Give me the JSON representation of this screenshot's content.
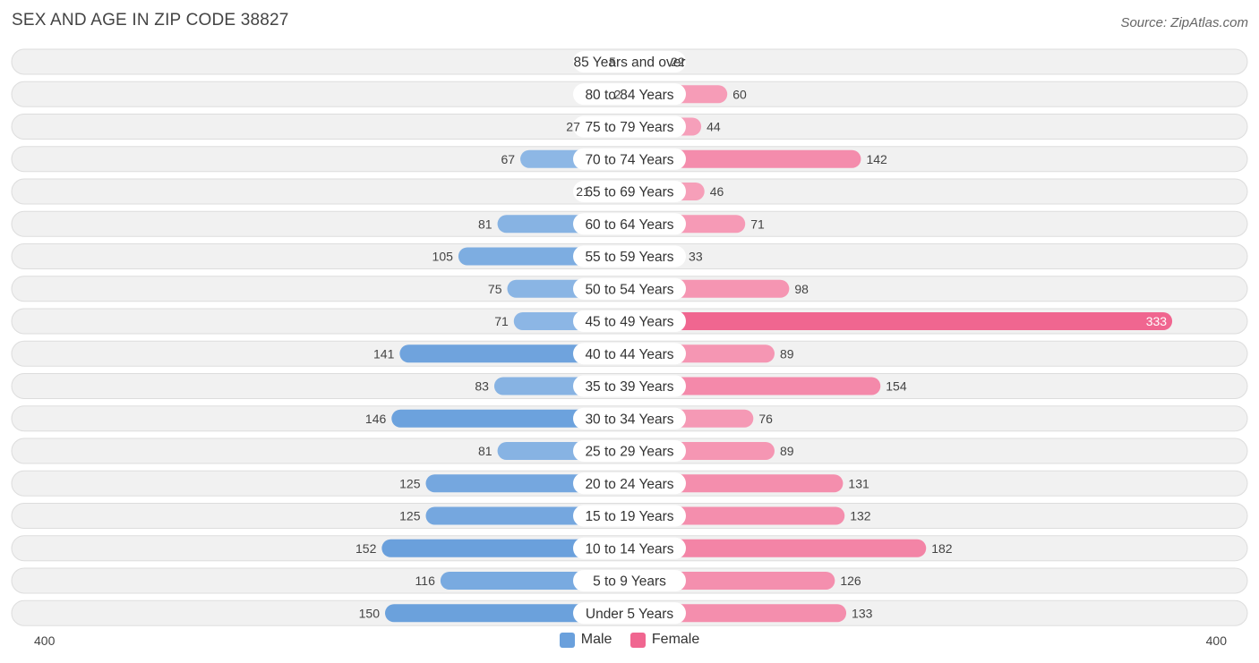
{
  "title": "SEX AND AGE IN ZIP CODE 38827",
  "source": "Source: ZipAtlas.com",
  "colors": {
    "male": "#6aa0dc",
    "male_light": "#a9c9ec",
    "female": "#f06690",
    "female_light": "#f7a8c0",
    "track": "#f1f1f1",
    "track_border": "#dddddd"
  },
  "chart_data": {
    "type": "bar",
    "orientation": "horizontal-diverging",
    "categories": [
      "85 Years and over",
      "80 to 84 Years",
      "75 to 79 Years",
      "70 to 74 Years",
      "65 to 69 Years",
      "60 to 64 Years",
      "55 to 59 Years",
      "50 to 54 Years",
      "45 to 49 Years",
      "40 to 44 Years",
      "35 to 39 Years",
      "30 to 34 Years",
      "25 to 29 Years",
      "20 to 24 Years",
      "15 to 19 Years",
      "10 to 14 Years",
      "5 to 9 Years",
      "Under 5 Years"
    ],
    "series": [
      {
        "name": "Male",
        "values": [
          5,
          2,
          27,
          67,
          21,
          81,
          105,
          75,
          71,
          141,
          83,
          146,
          81,
          125,
          125,
          152,
          116,
          150
        ]
      },
      {
        "name": "Female",
        "values": [
          22,
          60,
          44,
          142,
          46,
          71,
          33,
          98,
          333,
          89,
          154,
          76,
          89,
          131,
          132,
          182,
          126,
          133
        ]
      }
    ],
    "axis_min_label": "400",
    "axis_max_label": "400",
    "xlim": [
      -400,
      400
    ],
    "legend_position": "bottom-center"
  }
}
